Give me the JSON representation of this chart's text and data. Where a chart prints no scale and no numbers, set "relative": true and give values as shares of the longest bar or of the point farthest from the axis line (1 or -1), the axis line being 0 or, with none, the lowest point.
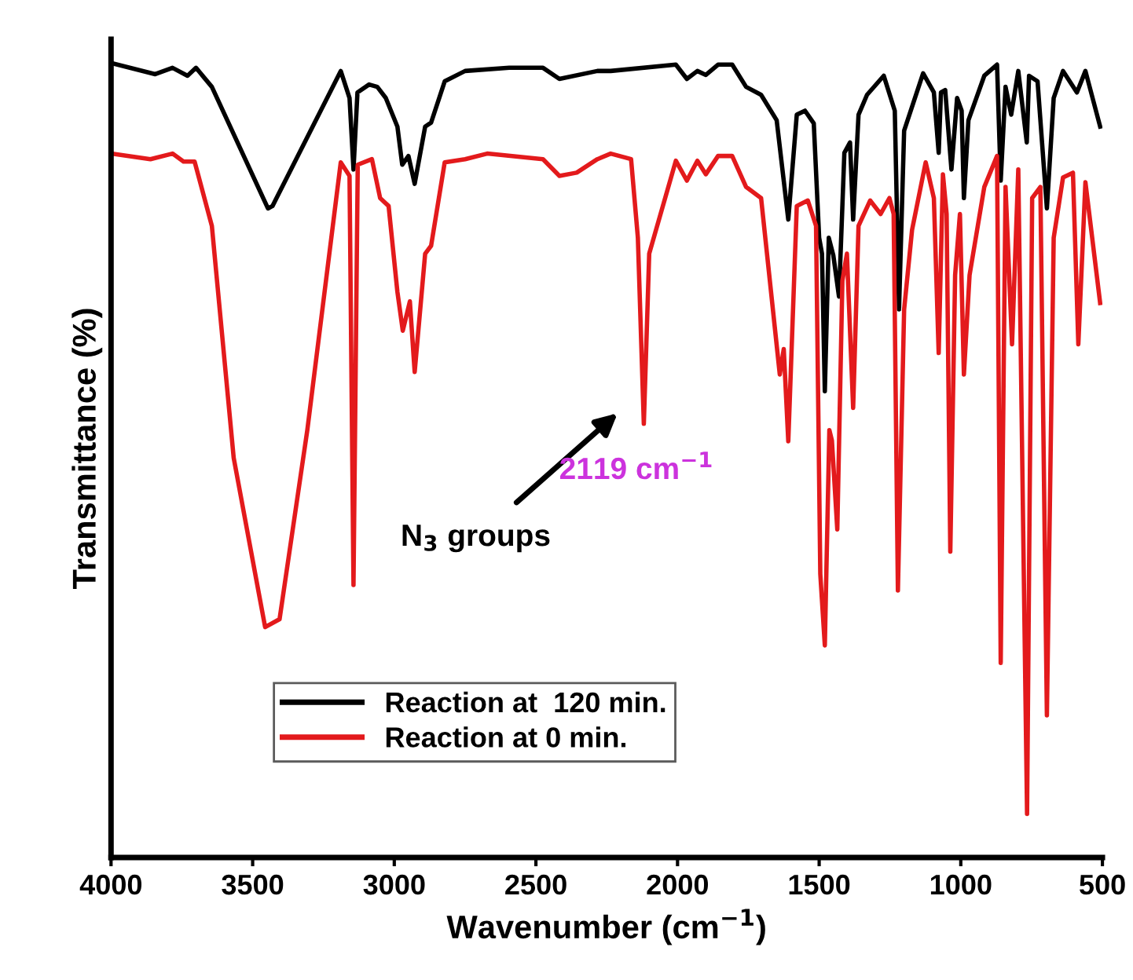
{
  "chart_data": {
    "type": "line",
    "relative": true,
    "xlabel": "Wavenumber (cm$^{−1}$)",
    "ylabel": "Transmittance (%)",
    "xlim": [
      4000,
      500
    ],
    "xticks": [
      4000,
      3500,
      3000,
      2500,
      2000,
      1500,
      1000,
      500
    ],
    "legend": "bottom left",
    "grid": false,
    "marker": "none",
    "line_style": "solid",
    "annotations": [
      "N$_{3}$ groups",
      "2119 cm$^{−1}$"
    ],
    "series": [
      {
        "name": "Reaction at  120 min.",
        "color": "#000000",
        "x": [
          4000,
          3844,
          3783,
          3730,
          3700,
          3644,
          3446,
          3430,
          3189,
          3158,
          3144,
          3130,
          3089,
          3060,
          3030,
          2989,
          2972,
          2950,
          2928,
          2891,
          2870,
          2822,
          2750,
          2594,
          2475,
          2417,
          2283,
          2236,
          2006,
          1967,
          1930,
          1900,
          1857,
          1807,
          1758,
          1705,
          1650,
          1609,
          1579,
          1550,
          1519,
          1500,
          1490,
          1480,
          1466,
          1450,
          1430,
          1411,
          1391,
          1380,
          1361,
          1331,
          1272,
          1233,
          1218,
          1200,
          1133,
          1095,
          1078,
          1070,
          1055,
          1033,
          1013,
          997,
          989,
          973,
          917,
          872,
          859,
          842,
          822,
          797,
          767,
          759,
          729,
          696,
          672,
          639,
          590,
          560,
          508
        ],
        "values": [
          1,
          0.986,
          0.994,
          0.984,
          0.994,
          0.97,
          0.817,
          0.82,
          0.99,
          0.956,
          0.866,
          0.963,
          0.973,
          0.97,
          0.956,
          0.92,
          0.872,
          0.883,
          0.848,
          0.92,
          0.925,
          0.977,
          0.99,
          0.994,
          0.994,
          0.98,
          0.99,
          0.99,
          0.998,
          0.98,
          0.99,
          0.985,
          0.998,
          0.998,
          0.97,
          0.96,
          0.928,
          0.803,
          0.935,
          0.94,
          0.924,
          0.78,
          0.76,
          0.587,
          0.78,
          0.758,
          0.706,
          0.887,
          0.9,
          0.803,
          0.935,
          0.96,
          0.984,
          0.94,
          0.69,
          0.915,
          0.987,
          0.963,
          0.887,
          0.963,
          0.966,
          0.866,
          0.956,
          0.94,
          0.83,
          0.928,
          0.984,
          0.998,
          0.852,
          0.97,
          0.935,
          0.99,
          0.9,
          0.984,
          0.977,
          0.817,
          0.956,
          0.99,
          0.963,
          0.99,
          0.92
        ]
      },
      {
        "name": "Reaction at 0 min.",
        "color": "#e31a1c",
        "x": [
          4000,
          3861,
          3783,
          3744,
          3705,
          3644,
          3567,
          3456,
          3405,
          3307,
          3189,
          3158,
          3144,
          3129,
          3079,
          3050,
          3020,
          2989,
          2970,
          2945,
          2928,
          2891,
          2870,
          2822,
          2750,
          2672,
          2475,
          2417,
          2356,
          2283,
          2236,
          2164,
          2140,
          2119,
          2100,
          2006,
          1967,
          1930,
          1900,
          1857,
          1807,
          1758,
          1705,
          1639,
          1625,
          1609,
          1579,
          1540,
          1511,
          1496,
          1480,
          1464,
          1455,
          1436,
          1418,
          1402,
          1380,
          1361,
          1320,
          1283,
          1252,
          1237,
          1222,
          1200,
          1172,
          1124,
          1095,
          1078,
          1063,
          1050,
          1037,
          1020,
          1003,
          989,
          969,
          917,
          872,
          859,
          842,
          819,
          797,
          766,
          748,
          719,
          696,
          672,
          639,
          604,
          585,
          560,
          508
        ],
        "values": [
          0.886,
          0.879,
          0.886,
          0.876,
          0.876,
          0.795,
          0.503,
          0.29,
          0.3,
          0.538,
          0.875,
          0.858,
          0.343,
          0.872,
          0.879,
          0.83,
          0.82,
          0.712,
          0.663,
          0.7,
          0.611,
          0.76,
          0.77,
          0.875,
          0.879,
          0.886,
          0.879,
          0.858,
          0.862,
          0.879,
          0.886,
          0.879,
          0.78,
          0.546,
          0.76,
          0.877,
          0.852,
          0.877,
          0.86,
          0.883,
          0.883,
          0.844,
          0.83,
          0.608,
          0.64,
          0.524,
          0.82,
          0.827,
          0.795,
          0.357,
          0.267,
          0.538,
          0.525,
          0.413,
          0.726,
          0.76,
          0.566,
          0.795,
          0.827,
          0.81,
          0.83,
          0.81,
          0.336,
          0.69,
          0.79,
          0.875,
          0.83,
          0.635,
          0.86,
          0.81,
          0.385,
          0.733,
          0.81,
          0.608,
          0.733,
          0.844,
          0.883,
          0.245,
          0.844,
          0.646,
          0.866,
          0.055,
          0.83,
          0.844,
          0.179,
          0.78,
          0.856,
          0.862,
          0.646,
          0.85,
          0.698
        ]
      }
    ]
  }
}
